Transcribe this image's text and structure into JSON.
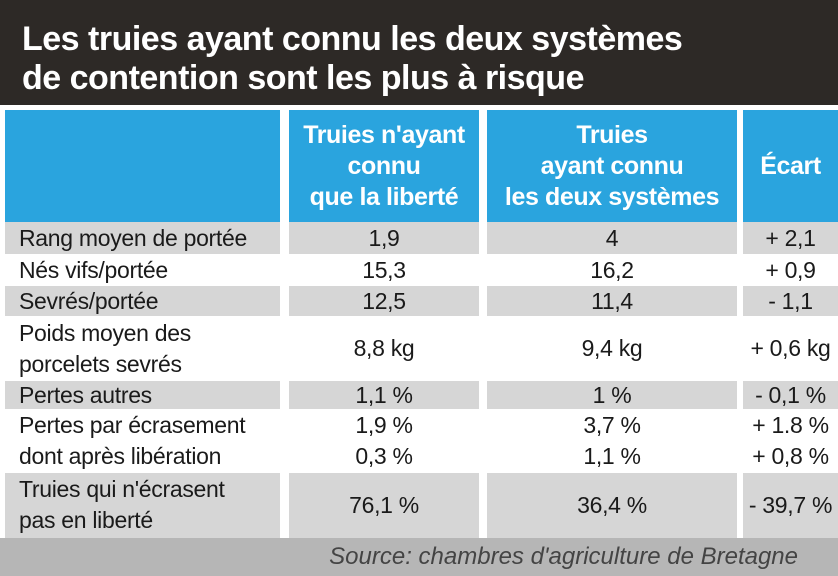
{
  "title": {
    "line1": "Les truies ayant connu les deux systèmes",
    "line2": "de contention sont les plus à risque"
  },
  "columns": [
    {
      "lines": [
        "Truies n'ayant",
        "connu",
        "que la liberté"
      ]
    },
    {
      "lines": [
        "Truies",
        "ayant connu",
        "les deux systèmes"
      ]
    },
    {
      "lines": [
        "Écart"
      ]
    }
  ],
  "rows": [
    {
      "label": [
        "Rang moyen de portée"
      ],
      "v1": "1,9",
      "v2": "4",
      "ecart": "+ 2,1"
    },
    {
      "label": [
        "Nés vifs/portée"
      ],
      "v1": "15,3",
      "v2": "16,2",
      "ecart": "+ 0,9"
    },
    {
      "label": [
        "Sevrés/portée"
      ],
      "v1": "12,5",
      "v2": "11,4",
      "ecart": "- 1,1"
    },
    {
      "label": [
        "Poids moyen des",
        "porcelets sevrés"
      ],
      "v1": "8,8 kg",
      "v2": "9,4 kg",
      "ecart": "+ 0,6 kg"
    },
    {
      "label": [
        "Pertes autres"
      ],
      "v1": "1,1 %",
      "v2": "1 %",
      "ecart": "- 0,1 %"
    },
    {
      "label": [
        "Pertes par écrasement"
      ],
      "v1": "1,9 %",
      "v2": "3,7 %",
      "ecart": "+ 1.8 %"
    },
    {
      "label": [
        "dont après libération"
      ],
      "v1": "0,3 %",
      "v2": "1,1 %",
      "ecart": "+ 0,8 %"
    },
    {
      "label": [
        "Truies qui n'écrasent",
        "pas en liberté"
      ],
      "v1": "76,1 %",
      "v2": "36,4 %",
      "ecart": "- 39,7 %"
    }
  ],
  "source": "Source: chambres d'agriculture de Bretagne"
}
